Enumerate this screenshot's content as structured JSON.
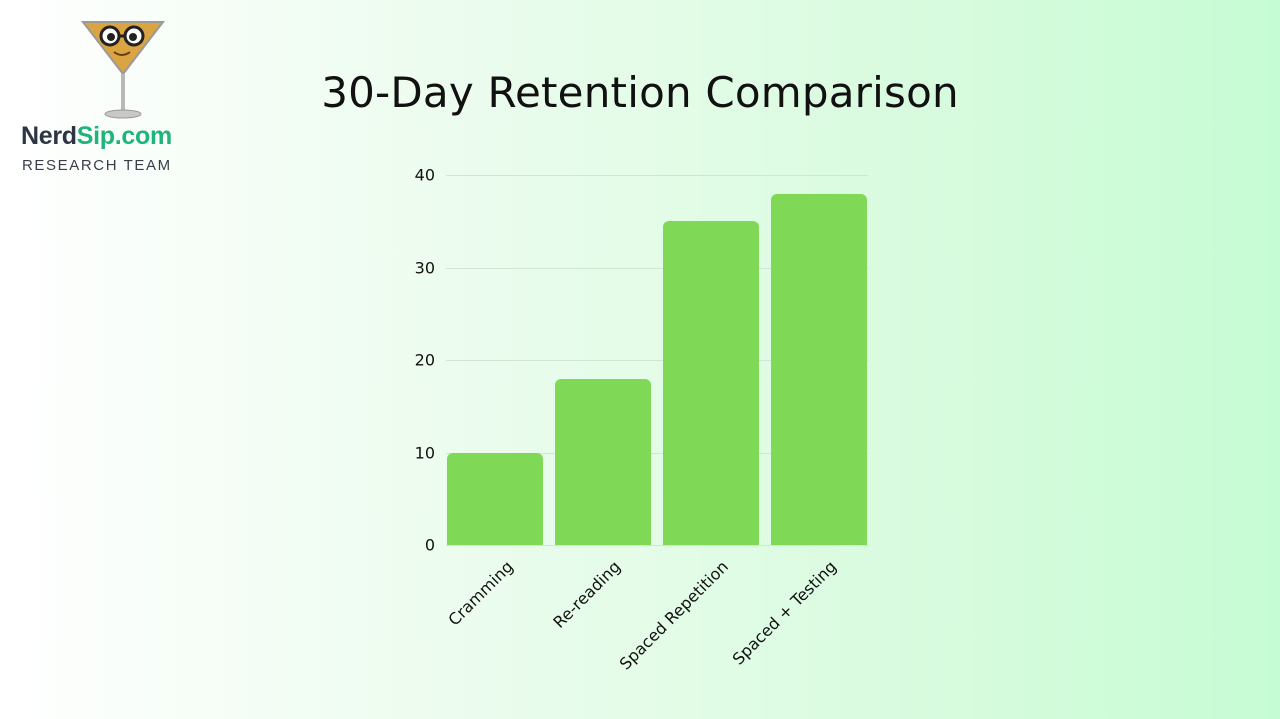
{
  "brand": {
    "name_part1": "Nerd",
    "name_part2": "Sip.com",
    "subtitle": "RESEARCH TEAM",
    "logo_icon": "martini-glass-nerd-icon"
  },
  "colors": {
    "bar": "#7fd957",
    "brand_dark": "#2c3544",
    "brand_green": "#1fb57a"
  },
  "chart_data": {
    "type": "bar",
    "title": "30-Day Retention Comparison",
    "categories": [
      "Cramming",
      "Re-reading",
      "Spaced Repetition",
      "Spaced + Testing"
    ],
    "values": [
      10,
      18,
      35,
      38
    ],
    "xlabel": "",
    "ylabel": "",
    "ylim": [
      0,
      40
    ],
    "yticks": [
      "0",
      "10",
      "20",
      "30",
      "40"
    ],
    "grid": true,
    "legend": null
  }
}
